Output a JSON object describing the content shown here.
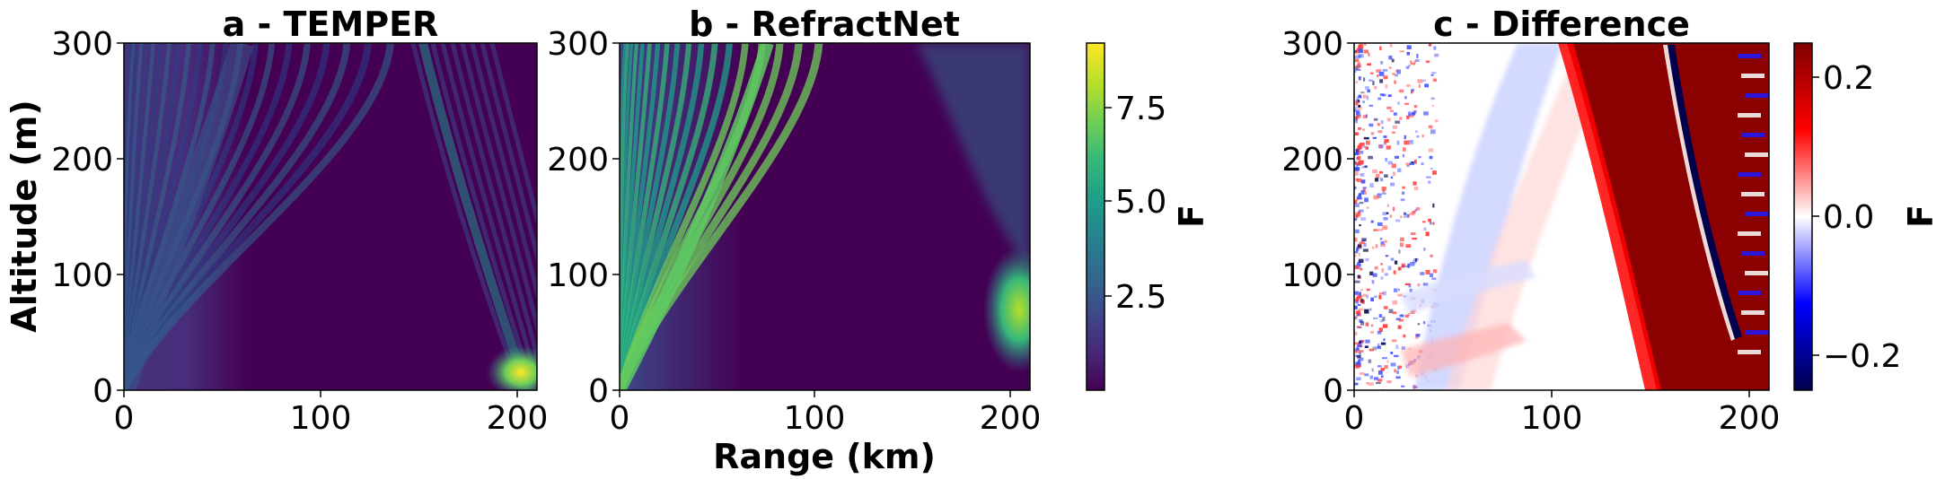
{
  "chart_data": [
    {
      "type": "heatmap",
      "title": "a - TEMPER",
      "xlabel": "",
      "ylabel": "Altitude (m)",
      "xlim": [
        0,
        210
      ],
      "ylim": [
        0,
        300
      ],
      "xticks": [
        "0",
        "100",
        "200"
      ],
      "yticks": [
        "0",
        "100",
        "200",
        "300"
      ],
      "colormap": "viridis",
      "colorbar_label": "F",
      "colorbar_range": [
        0,
        9.2
      ],
      "colorbar_ticks": [
        "2.5",
        "5.0",
        "7.5"
      ],
      "features": [
        {
          "ridge_range_km": [
            0,
            60
          ],
          "peak_altitude_m": 300,
          "value": 2.5
        },
        {
          "ridge_range_km": [
            120,
            200
          ],
          "peak_altitude_m": 300,
          "value": 3.5
        },
        {
          "hotspot_range_km": 200,
          "hotspot_altitude_m": 15,
          "value": 8.5
        }
      ]
    },
    {
      "type": "heatmap",
      "title": "b - RefractNet",
      "xlabel": "Range (km)",
      "ylabel": "",
      "xlim": [
        0,
        210
      ],
      "ylim": [
        0,
        300
      ],
      "xticks": [
        "0",
        "100",
        "200"
      ],
      "yticks": [
        "0",
        "100",
        "200",
        "300"
      ],
      "colormap": "viridis",
      "colorbar_label": "F",
      "colorbar_range": [
        0,
        9.2
      ],
      "colorbar_ticks": [
        "2.5",
        "5.0",
        "7.5"
      ],
      "features": [
        {
          "ridge_range_km": [
            0,
            70
          ],
          "peak_altitude_m": 300,
          "value": 5.5
        },
        {
          "hotspot_range_km": 205,
          "hotspot_altitude_m": 70,
          "value": 7.0
        }
      ]
    },
    {
      "type": "heatmap",
      "title": "c - Difference",
      "xlabel": "",
      "ylabel": "",
      "xlim": [
        0,
        210
      ],
      "ylim": [
        0,
        300
      ],
      "xticks": [
        "0",
        "100",
        "200"
      ],
      "yticks": [
        "0",
        "100",
        "200",
        "300"
      ],
      "colormap": "seismic",
      "colorbar_label": "F",
      "colorbar_range": [
        -0.25,
        0.25
      ],
      "colorbar_ticks": [
        "−0.2",
        "0.0",
        "0.2"
      ],
      "features": [
        {
          "region": "red band",
          "range_km": [
            110,
            210
          ],
          "value": 0.25
        },
        {
          "region": "blue streak",
          "range_km": [
            160,
            200
          ],
          "value": -0.25
        }
      ]
    }
  ],
  "colors": {
    "viridis": [
      "#440154",
      "#482878",
      "#3e4989",
      "#31688e",
      "#26828e",
      "#1f9e89",
      "#35b779",
      "#6ece58",
      "#b5de2b",
      "#fde725"
    ],
    "seismic": [
      "#00004c",
      "#0000ff",
      "#ffffff",
      "#ff0000",
      "#800000"
    ]
  }
}
